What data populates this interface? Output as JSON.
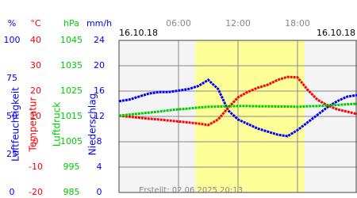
{
  "chart_data": {
    "type": "line",
    "date_left": "16.10.18",
    "date_right": "16.10.18",
    "created": "Erstellt: 02.06.2025 20:13",
    "xlim": [
      0,
      24
    ],
    "xticks": [
      {
        "value": 6,
        "label": "06:00"
      },
      {
        "value": 12,
        "label": "12:00"
      },
      {
        "value": 18,
        "label": "18:00"
      }
    ],
    "daylight": [
      7.7,
      18.7
    ],
    "grid": true,
    "axes": [
      {
        "unit": "%",
        "label": "Luftfeuchtigkeit",
        "color": "#0000ff",
        "lim": [
          0,
          100
        ],
        "ticks": [
          0,
          25,
          50,
          75,
          100
        ]
      },
      {
        "unit": "°C",
        "label": "Temperatur",
        "color": "#ff0000",
        "lim": [
          -20,
          40
        ],
        "ticks": [
          -20,
          -10,
          0,
          10,
          20,
          30,
          40
        ]
      },
      {
        "unit": "hPa",
        "label": "Luftdruck",
        "color": "#00cc00",
        "lim": [
          985,
          1045
        ],
        "ticks": [
          985,
          995,
          1005,
          1015,
          1025,
          1035,
          1045
        ]
      },
      {
        "unit": "mm/h",
        "label": "Niederschlag",
        "color": "#0000ff",
        "lim": [
          0,
          24
        ],
        "ticks": [
          0,
          4,
          8,
          12,
          16,
          20,
          24
        ]
      }
    ],
    "x": [
      0,
      1,
      2,
      3,
      4,
      5,
      6,
      7,
      8,
      9,
      10,
      11,
      12,
      13,
      14,
      15,
      16,
      17,
      18,
      19,
      20,
      21,
      22,
      23,
      24
    ],
    "series": [
      {
        "axis": 0,
        "color": "#0000ff",
        "values": [
          60,
          61,
          63,
          65,
          66,
          66,
          67,
          68,
          70,
          74,
          68,
          54,
          48,
          45,
          42,
          40,
          38,
          37,
          41,
          46,
          51,
          56,
          60,
          63,
          64
        ]
      },
      {
        "axis": 1,
        "color": "#ff0000",
        "values": [
          10.3,
          9.9,
          9.5,
          9.1,
          8.8,
          8.4,
          8.0,
          7.6,
          7.2,
          6.6,
          8.8,
          13.4,
          17.5,
          19.7,
          21.3,
          22.5,
          24.4,
          25.6,
          25.4,
          20.6,
          16.6,
          14.4,
          12.8,
          11.9,
          10.9
        ]
      },
      {
        "axis": 2,
        "color": "#00cc00",
        "values": [
          1015.3,
          1015.7,
          1016.1,
          1016.5,
          1016.9,
          1017.4,
          1017.8,
          1018.1,
          1018.5,
          1018.8,
          1018.9,
          1019.0,
          1019.1,
          1019.1,
          1019.0,
          1019.0,
          1018.9,
          1018.9,
          1018.8,
          1019.0,
          1019.1,
          1019.3,
          1019.5,
          1019.8,
          1020.0
        ]
      }
    ]
  }
}
